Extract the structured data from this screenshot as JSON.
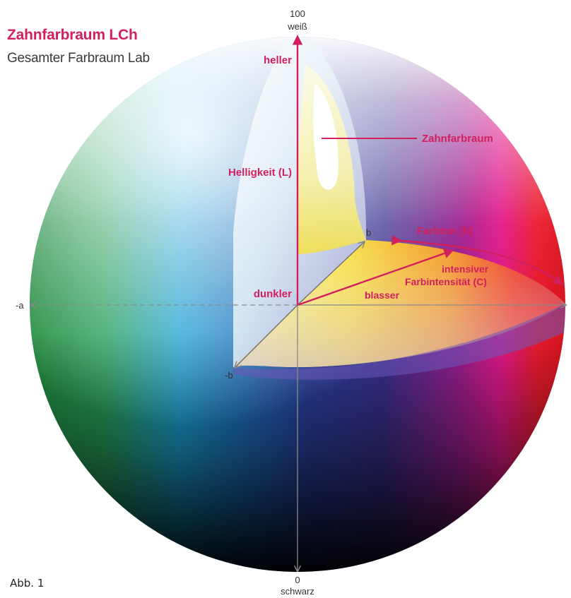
{
  "header": {
    "title": "Zahnfarbraum LCh",
    "subtitle": "Gesamter Farbraum Lab"
  },
  "axes": {
    "top_value": "100",
    "top_label": "weiß",
    "bottom_value": "0",
    "bottom_label": "schwarz",
    "neg_a": "-a",
    "pos_b": "b",
    "neg_b": "-b"
  },
  "labels": {
    "heller": "heller",
    "helligkeit": "Helligkeit (L)",
    "dunkler": "dunkler",
    "zahnfarbraum": "Zahnfarbraum",
    "farbton": "Farbton (h)",
    "intensiver": "intensiver",
    "farbintensitaet": "Farbintensität (C)",
    "blasser": "blasser"
  },
  "caption": "Abb. 1",
  "colors": {
    "accent": "#d21f5e",
    "axis": "#8a8a8a"
  }
}
